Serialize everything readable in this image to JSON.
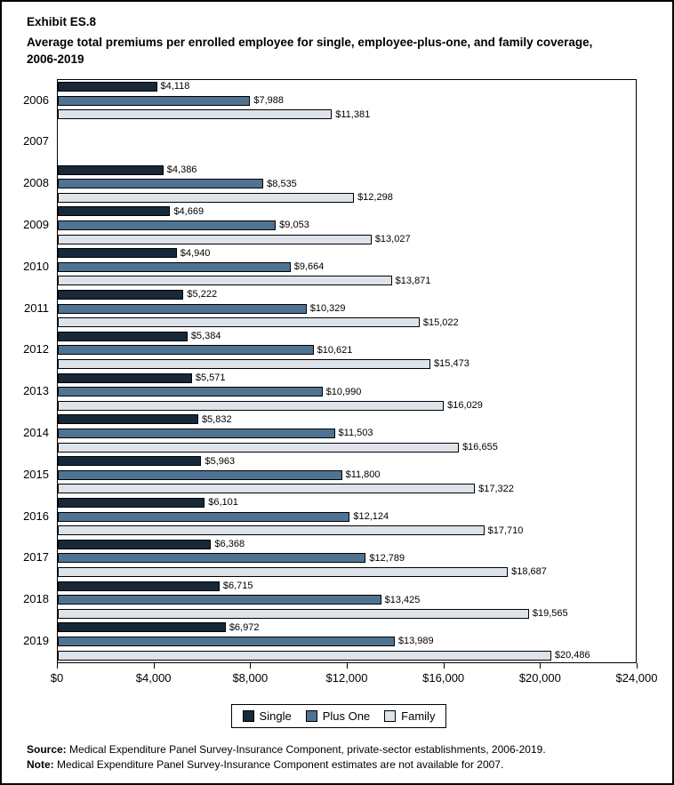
{
  "title": {
    "exhibit": "Exhibit ES.8",
    "subtitle": "Average total premiums per enrolled employee for single, employee-plus-one, and family coverage, 2006-2019"
  },
  "chart_data": {
    "type": "bar",
    "orientation": "horizontal",
    "title": "Average total premiums per enrolled employee for single, employee-plus-one, and family coverage, 2006-2019",
    "categories": [
      "2006",
      "2007",
      "2008",
      "2009",
      "2010",
      "2011",
      "2012",
      "2013",
      "2014",
      "2015",
      "2016",
      "2017",
      "2018",
      "2019"
    ],
    "series": [
      {
        "name": "Single",
        "color": "#172938",
        "values": [
          4118,
          null,
          4386,
          4669,
          4940,
          5222,
          5384,
          5571,
          5832,
          5963,
          6101,
          6368,
          6715,
          6972
        ],
        "labels": [
          "$4,118",
          "",
          "$4,386",
          "$4,669",
          "$4,940",
          "$5,222",
          "$5,384",
          "$5,571",
          "$5,832",
          "$5,963",
          "$6,101",
          "$6,368",
          "$6,715",
          "$6,972"
        ]
      },
      {
        "name": "Plus One",
        "color": "#4f7392",
        "values": [
          7988,
          null,
          8535,
          9053,
          9664,
          10329,
          10621,
          10990,
          11503,
          11800,
          12124,
          12789,
          13425,
          13989
        ],
        "labels": [
          "$7,988",
          "",
          "$8,535",
          "$9,053",
          "$9,664",
          "$10,329",
          "$10,621",
          "$10,990",
          "$11,503",
          "$11,800",
          "$12,124",
          "$12,789",
          "$13,425",
          "$13,989"
        ]
      },
      {
        "name": "Family",
        "color": "#dde3e8",
        "values": [
          11381,
          null,
          12298,
          13027,
          13871,
          15022,
          15473,
          16029,
          16655,
          17322,
          17710,
          18687,
          19565,
          20486
        ],
        "labels": [
          "$11,381",
          "",
          "$12,298",
          "$13,027",
          "$13,871",
          "$15,022",
          "$15,473",
          "$16,029",
          "$16,655",
          "$17,322",
          "$17,710",
          "$18,687",
          "$19,565",
          "$20,486"
        ]
      }
    ],
    "xlim": [
      0,
      24000
    ],
    "x_ticks": [
      0,
      4000,
      8000,
      12000,
      16000,
      20000,
      24000
    ],
    "x_tick_labels": [
      "$0",
      "$4,000",
      "$8,000",
      "$12,000",
      "$16,000",
      "$20,000",
      "$24,000"
    ],
    "legend_position": "bottom",
    "grid": false,
    "note": "2007 estimates not available"
  },
  "footer": {
    "source_label": "Source:",
    "source_text": "Medical Expenditure Panel Survey-Insurance Component, private-sector establishments, 2006-2019.",
    "note_label": "Note:",
    "note_text": "Medical Expenditure Panel Survey-Insurance Component estimates are not available for 2007."
  }
}
